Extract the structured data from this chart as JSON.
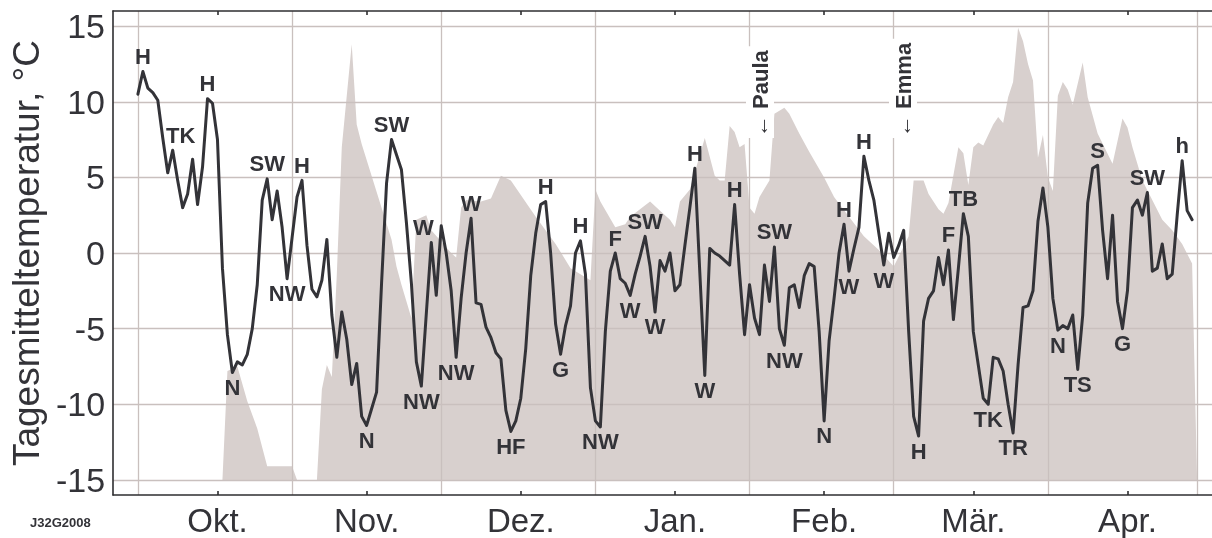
{
  "chart_data": {
    "type": "line",
    "ylabel": "Tagesmitteltemperatur, °C",
    "x": [
      "2007-10-01",
      "2007-10-02",
      "2007-10-03",
      "2007-10-04",
      "2007-10-05",
      "2007-10-06",
      "2007-10-07",
      "2007-10-08",
      "2007-10-09",
      "2007-10-10",
      "2007-10-11",
      "2007-10-12",
      "2007-10-13",
      "2007-10-14",
      "2007-10-15",
      "2007-10-16",
      "2007-10-17",
      "2007-10-18",
      "2007-10-19",
      "2007-10-20",
      "2007-10-21",
      "2007-10-22",
      "2007-10-23",
      "2007-10-24",
      "2007-10-25",
      "2007-10-26",
      "2007-10-27",
      "2007-10-28",
      "2007-10-29",
      "2007-10-30",
      "2007-10-31",
      "2007-11-01",
      "2007-11-02",
      "2007-11-03",
      "2007-11-04",
      "2007-11-05",
      "2007-11-06",
      "2007-11-07",
      "2007-11-08",
      "2007-11-09",
      "2007-11-10",
      "2007-11-11",
      "2007-11-12",
      "2007-11-13",
      "2007-11-14",
      "2007-11-15",
      "2007-11-16",
      "2007-11-17",
      "2007-11-18",
      "2007-11-19",
      "2007-11-20",
      "2007-11-21",
      "2007-11-22",
      "2007-11-23",
      "2007-11-24",
      "2007-11-25",
      "2007-11-26",
      "2007-11-27",
      "2007-11-28",
      "2007-11-29",
      "2007-11-30",
      "2007-12-01",
      "2007-12-02",
      "2007-12-03",
      "2007-12-04",
      "2007-12-05",
      "2007-12-06",
      "2007-12-07",
      "2007-12-08",
      "2007-12-09",
      "2007-12-10",
      "2007-12-11",
      "2007-12-12",
      "2007-12-13",
      "2007-12-14",
      "2007-12-15",
      "2007-12-16",
      "2007-12-17",
      "2007-12-18",
      "2007-12-19",
      "2007-12-20",
      "2007-12-21",
      "2007-12-22",
      "2007-12-23",
      "2007-12-24",
      "2007-12-25",
      "2007-12-26",
      "2007-12-27",
      "2007-12-28",
      "2007-12-29",
      "2007-12-30",
      "2007-12-31",
      "2008-01-01",
      "2008-01-02",
      "2008-01-03",
      "2008-01-04",
      "2008-01-05",
      "2008-01-06",
      "2008-01-07",
      "2008-01-08",
      "2008-01-09",
      "2008-01-10",
      "2008-01-11",
      "2008-01-12",
      "2008-01-13",
      "2008-01-14",
      "2008-01-15",
      "2008-01-16",
      "2008-01-17",
      "2008-01-18",
      "2008-01-19",
      "2008-01-20",
      "2008-01-21",
      "2008-01-22",
      "2008-01-23",
      "2008-01-24",
      "2008-01-25",
      "2008-01-26",
      "2008-01-27",
      "2008-01-28",
      "2008-01-29",
      "2008-01-30",
      "2008-01-31",
      "2008-02-01",
      "2008-02-02",
      "2008-02-03",
      "2008-02-04",
      "2008-02-05",
      "2008-02-06",
      "2008-02-07",
      "2008-02-08",
      "2008-02-09",
      "2008-02-10",
      "2008-02-11",
      "2008-02-12",
      "2008-02-13",
      "2008-02-14",
      "2008-02-15",
      "2008-02-16",
      "2008-02-17",
      "2008-02-18",
      "2008-02-19",
      "2008-02-20",
      "2008-02-21",
      "2008-02-22",
      "2008-02-23",
      "2008-02-24",
      "2008-02-25",
      "2008-02-26",
      "2008-02-27",
      "2008-02-28",
      "2008-02-29",
      "2008-03-01",
      "2008-03-02",
      "2008-03-03",
      "2008-03-04",
      "2008-03-05",
      "2008-03-06",
      "2008-03-07",
      "2008-03-08",
      "2008-03-09",
      "2008-03-10",
      "2008-03-11",
      "2008-03-12",
      "2008-03-13",
      "2008-03-14",
      "2008-03-15",
      "2008-03-16",
      "2008-03-17",
      "2008-03-18",
      "2008-03-19",
      "2008-03-20",
      "2008-03-21",
      "2008-03-22",
      "2008-03-23",
      "2008-03-24",
      "2008-03-25",
      "2008-03-26",
      "2008-03-27",
      "2008-03-28",
      "2008-03-29",
      "2008-03-30",
      "2008-03-31",
      "2008-04-01",
      "2008-04-02",
      "2008-04-03",
      "2008-04-04",
      "2008-04-05",
      "2008-04-06",
      "2008-04-07",
      "2008-04-08",
      "2008-04-09",
      "2008-04-10",
      "2008-04-11",
      "2008-04-12",
      "2008-04-13",
      "2008-04-14",
      "2008-04-15",
      "2008-04-16",
      "2008-04-17",
      "2008-04-18",
      "2008-04-19",
      "2008-04-20",
      "2008-04-21",
      "2008-04-22",
      "2008-04-23",
      "2008-04-24",
      "2008-04-25",
      "2008-04-26",
      "2008-04-27",
      "2008-04-28",
      "2008-04-29",
      "2008-04-30"
    ],
    "series": [
      {
        "type": "area",
        "color": "#d8d0ce",
        "x": [
          "2007-10-01",
          "2007-10-18",
          "2007-10-19",
          "2007-10-21",
          "2007-10-23",
          "2007-10-25",
          "2007-10-27",
          "2007-11-01",
          "2007-11-02",
          "2007-11-06",
          "2007-11-07",
          "2007-11-08",
          "2007-11-09",
          "2007-11-10",
          "2007-11-11",
          "2007-11-13",
          "2007-11-14",
          "2007-11-15",
          "2007-11-19",
          "2007-11-21",
          "2007-11-22",
          "2007-11-23",
          "2007-11-25",
          "2007-11-26",
          "2007-11-28",
          "2007-11-29",
          "2007-12-03",
          "2007-12-04",
          "2007-12-05",
          "2007-12-06",
          "2007-12-09",
          "2007-12-11",
          "2007-12-13",
          "2007-12-15",
          "2007-12-20",
          "2007-12-24",
          "2007-12-27",
          "2007-12-31",
          "2008-01-01",
          "2008-01-02",
          "2008-01-05",
          "2008-01-07",
          "2008-01-08",
          "2008-01-12",
          "2008-01-14",
          "2008-01-16",
          "2008-01-17",
          "2008-01-18",
          "2008-01-20",
          "2008-01-23",
          "2008-01-25",
          "2008-01-26",
          "2008-01-27",
          "2008-01-28",
          "2008-01-29",
          "2008-01-30",
          "2008-01-31",
          "2008-02-01",
          "2008-02-02",
          "2008-02-03",
          "2008-02-05",
          "2008-02-06",
          "2008-02-08",
          "2008-02-09",
          "2008-02-11",
          "2008-02-13",
          "2008-02-16",
          "2008-02-18",
          "2008-02-21",
          "2008-02-24",
          "2008-02-27",
          "2008-03-01",
          "2008-03-04",
          "2008-03-05",
          "2008-03-07",
          "2008-03-08",
          "2008-03-10",
          "2008-03-11",
          "2008-03-12",
          "2008-03-14",
          "2008-03-15",
          "2008-03-16",
          "2008-03-17",
          "2008-03-18",
          "2008-03-19",
          "2008-03-21",
          "2008-03-22",
          "2008-03-23",
          "2008-03-24",
          "2008-03-25",
          "2008-03-26",
          "2008-03-27",
          "2008-03-28",
          "2008-03-29",
          "2008-03-30",
          "2008-03-31",
          "2008-04-01",
          "2008-04-02",
          "2008-04-03",
          "2008-04-04",
          "2008-04-05",
          "2008-04-06",
          "2008-04-08",
          "2008-04-09",
          "2008-04-11",
          "2008-04-14",
          "2008-04-16",
          "2008-04-17",
          "2008-04-18",
          "2008-04-20",
          "2008-04-24",
          "2008-04-26",
          "2008-04-28",
          "2008-04-30",
          "2008-05-01"
        ],
        "values": [
          -15,
          -15,
          -7.8,
          -7.5,
          -9.8,
          -11.6,
          -14.1,
          -14.1,
          -15,
          -15,
          -9.0,
          -7.4,
          -8.2,
          -1.4,
          7.0,
          13.8,
          8.5,
          7.2,
          3.0,
          0.9,
          -0.9,
          -2.1,
          -4.3,
          2.2,
          2.5,
          1.5,
          0.0,
          -0.3,
          3.0,
          3.5,
          3.4,
          3.6,
          5.1,
          4.8,
          2.4,
          0.6,
          -1.0,
          -1.8,
          4.2,
          3.4,
          1.7,
          1.9,
          2.4,
          3.4,
          2.8,
          2.2,
          1.7,
          3.4,
          4.2,
          7.6,
          5.1,
          4.8,
          4.8,
          8.4,
          8.0,
          7.0,
          7.2,
          3.0,
          2.6,
          3.7,
          4.8,
          9.2,
          9.6,
          9.2,
          7.9,
          6.7,
          5.0,
          3.7,
          2.4,
          1.1,
          0.2,
          -0.9,
          1.1,
          4.8,
          4.8,
          3.9,
          2.9,
          2.6,
          3.3,
          7.0,
          6.6,
          4.5,
          7.0,
          7.3,
          7.1,
          8.5,
          9.0,
          8.6,
          10.3,
          11.3,
          14.9,
          14.0,
          12.5,
          11.4,
          6.3,
          7.8,
          5.0,
          4.1,
          10.4,
          11.3,
          10.8,
          9.8,
          12.6,
          10.3,
          7.9,
          5.9,
          8.9,
          8.3,
          7.0,
          4.8,
          2.2,
          1.5,
          0.6,
          -0.7,
          -15
        ]
      },
      {
        "color": "#333338",
        "values": [
          10.5,
          12.0,
          10.9,
          10.6,
          10.1,
          7.6,
          5.3,
          6.8,
          4.8,
          3.0,
          3.9,
          6.2,
          3.2,
          5.7,
          10.2,
          9.9,
          7.5,
          -1.0,
          -5.4,
          -7.9,
          -7.2,
          -7.4,
          -6.7,
          -5.0,
          -2.1,
          3.5,
          4.9,
          2.2,
          4.1,
          1.7,
          -1.7,
          1.0,
          3.7,
          4.8,
          0.5,
          -2.4,
          -2.9,
          -1.8,
          0.9,
          -4.1,
          -6.9,
          -3.9,
          -5.7,
          -8.7,
          -7.3,
          -10.8,
          -11.4,
          -10.3,
          -9.2,
          -2.0,
          4.6,
          7.5,
          6.5,
          5.5,
          2.0,
          -2.0,
          -7.2,
          -8.8,
          -4.0,
          0.7,
          -2.8,
          1.8,
          0.0,
          -2.5,
          -6.9,
          -3.0,
          0.0,
          2.3,
          -3.3,
          -3.4,
          -4.9,
          -5.6,
          -6.6,
          -7.0,
          -10.4,
          -11.8,
          -11.1,
          -9.6,
          -6.3,
          -1.5,
          1.3,
          3.2,
          3.4,
          0.0,
          -4.7,
          -6.7,
          -4.8,
          -3.5,
          0.0,
          0.8,
          -1.4,
          -8.9,
          -11.1,
          -11.5,
          -5.2,
          -1.2,
          0.0,
          -1.7,
          -2.0,
          -2.8,
          -1.4,
          -0.2,
          1.1,
          -0.9,
          -3.9,
          -0.5,
          -1.2,
          0.0,
          -2.5,
          -2.1,
          0.5,
          3.0,
          5.6,
          -1.3,
          -8.1,
          0.3,
          0.0,
          -0.2,
          -0.5,
          -0.8,
          3.2,
          -1.4,
          -5.4,
          -2.1,
          -4.3,
          -5.4,
          -0.8,
          -3.2,
          0.4,
          -5.0,
          -6.1,
          -2.3,
          -2.1,
          -3.6,
          -1.5,
          -0.7,
          -0.9,
          -5.2,
          -11.1,
          -5.8,
          -3.0,
          0.0,
          1.9,
          -1.2,
          0.3,
          1.7,
          6.4,
          4.8,
          3.5,
          1.3,
          -0.8,
          1.3,
          -0.3,
          0.5,
          1.5,
          -5.2,
          -10.8,
          -12.1,
          -4.5,
          -3.0,
          -2.5,
          -0.3,
          -2.1,
          0.2,
          -4.4,
          -1.0,
          2.6,
          1.1,
          -5.2,
          -7.4,
          -9.6,
          -10.0,
          -6.9,
          -7.0,
          -7.8,
          -10.0,
          -11.9,
          -7.4,
          -3.6,
          -3.5,
          -2.5,
          2.1,
          4.3,
          1.7,
          -3.0,
          -5.1,
          -4.8,
          -5.0,
          -4.1,
          -7.7,
          -4.1,
          3.3,
          5.6,
          5.8,
          1.5,
          -1.7,
          2.5,
          -3.2,
          -5.0,
          -2.5,
          3.0,
          3.5,
          2.5,
          4.0,
          -1.2,
          -1.0,
          0.6,
          -1.7,
          -1.4,
          2.5,
          6.1,
          2.8,
          2.2
        ]
      }
    ],
    "xlim": [
      "2007-09-26",
      "2008-05-04"
    ],
    "xticks": [
      {
        "value": "2007-10-01",
        "label": null
      },
      {
        "value": "2007-10-17",
        "label": "Okt."
      },
      {
        "value": "2007-11-01",
        "label": null
      },
      {
        "value": "2007-11-16",
        "label": "Nov."
      },
      {
        "value": "2007-12-01",
        "label": null
      },
      {
        "value": "2007-12-17",
        "label": "Dez."
      },
      {
        "value": "2008-01-01",
        "label": null
      },
      {
        "value": "2008-01-17",
        "label": "Jan."
      },
      {
        "value": "2008-02-01",
        "label": null
      },
      {
        "value": "2008-02-16",
        "label": "Feb."
      },
      {
        "value": "2008-03-01",
        "label": null
      },
      {
        "value": "2008-03-17",
        "label": "Mär."
      },
      {
        "value": "2008-04-01",
        "label": null
      },
      {
        "value": "2008-04-17",
        "label": "Apr."
      },
      {
        "value": "2008-05-01",
        "label": null
      }
    ],
    "ylim": [
      -16,
      16
    ],
    "yticks": [
      -15,
      -10,
      -5,
      0,
      5,
      10,
      15
    ],
    "grid": true,
    "annotations": [
      {
        "text": "H",
        "x": "2007-10-02",
        "y": 12.0
      },
      {
        "text": "TK",
        "x": "2007-10-08",
        "y": 6.8
      },
      {
        "text": "H",
        "x": "2007-10-15",
        "y": 10.2
      },
      {
        "text": "N",
        "x": "2007-10-20",
        "y": -7.9
      },
      {
        "text": "SW",
        "x": "2007-10-27",
        "y": 4.9
      },
      {
        "text": "NW",
        "x": "2007-10-31",
        "y": -1.7
      },
      {
        "text": "H",
        "x": "2007-11-03",
        "y": 4.8
      },
      {
        "text": "N",
        "x": "2007-11-16",
        "y": -11.4
      },
      {
        "text": "SW",
        "x": "2007-11-21",
        "y": 7.5
      },
      {
        "text": "NW",
        "x": "2007-11-27",
        "y": -8.8
      },
      {
        "text": "W",
        "x": "2007-11-29",
        "y": 0.7
      },
      {
        "text": "NW",
        "x": "2007-12-04",
        "y": -6.9
      },
      {
        "text": "W",
        "x": "2007-12-07",
        "y": 2.3
      },
      {
        "text": "HF",
        "x": "2007-12-15",
        "y": -11.8
      },
      {
        "text": "H",
        "x": "2007-12-22",
        "y": 3.4
      },
      {
        "text": "G",
        "x": "2007-12-25",
        "y": -6.7
      },
      {
        "text": "H",
        "x": "2007-12-29",
        "y": 0.8
      },
      {
        "text": "NW",
        "x": "2008-01-02",
        "y": -11.5
      },
      {
        "text": "F",
        "x": "2008-01-05",
        "y": 0.0
      },
      {
        "text": "W",
        "x": "2008-01-08",
        "y": -2.8
      },
      {
        "text": "SW",
        "x": "2008-01-11",
        "y": 1.1
      },
      {
        "text": "W",
        "x": "2008-01-13",
        "y": -3.9
      },
      {
        "text": "H",
        "x": "2008-01-21",
        "y": 5.6
      },
      {
        "text": "W",
        "x": "2008-01-23",
        "y": -8.1
      },
      {
        "text": "H",
        "x": "2008-01-29",
        "y": 3.2
      },
      {
        "text": "SW",
        "x": "2008-02-06",
        "y": 0.4
      },
      {
        "text": "NW",
        "x": "2008-02-08",
        "y": -6.1
      },
      {
        "text": "N",
        "x": "2008-02-16",
        "y": -11.1
      },
      {
        "text": "H",
        "x": "2008-02-20",
        "y": 1.9
      },
      {
        "text": "W",
        "x": "2008-02-21",
        "y": -1.2
      },
      {
        "text": "H",
        "x": "2008-02-24",
        "y": 6.4
      },
      {
        "text": "W",
        "x": "2008-02-28",
        "y": -0.8
      },
      {
        "text": "H",
        "x": "2008-03-06",
        "y": -12.1
      },
      {
        "text": "F",
        "x": "2008-03-12",
        "y": 0.2
      },
      {
        "text": "TB",
        "x": "2008-03-15",
        "y": 2.6
      },
      {
        "text": "TK",
        "x": "2008-03-20",
        "y": -10.0
      },
      {
        "text": "TR",
        "x": "2008-03-25",
        "y": -11.9
      },
      {
        "text": "N",
        "x": "2008-04-03",
        "y": -5.1
      },
      {
        "text": "TS",
        "x": "2008-04-07",
        "y": -7.7
      },
      {
        "text": "S",
        "x": "2008-04-11",
        "y": 5.8
      },
      {
        "text": "G",
        "x": "2008-04-16",
        "y": -5.0
      },
      {
        "text": "SW",
        "x": "2008-04-21",
        "y": 4.0
      },
      {
        "text": "h",
        "x": "2008-04-28",
        "y": 6.1
      },
      "← Paula",
      "← Emma",
      "J32G2008"
    ]
  }
}
